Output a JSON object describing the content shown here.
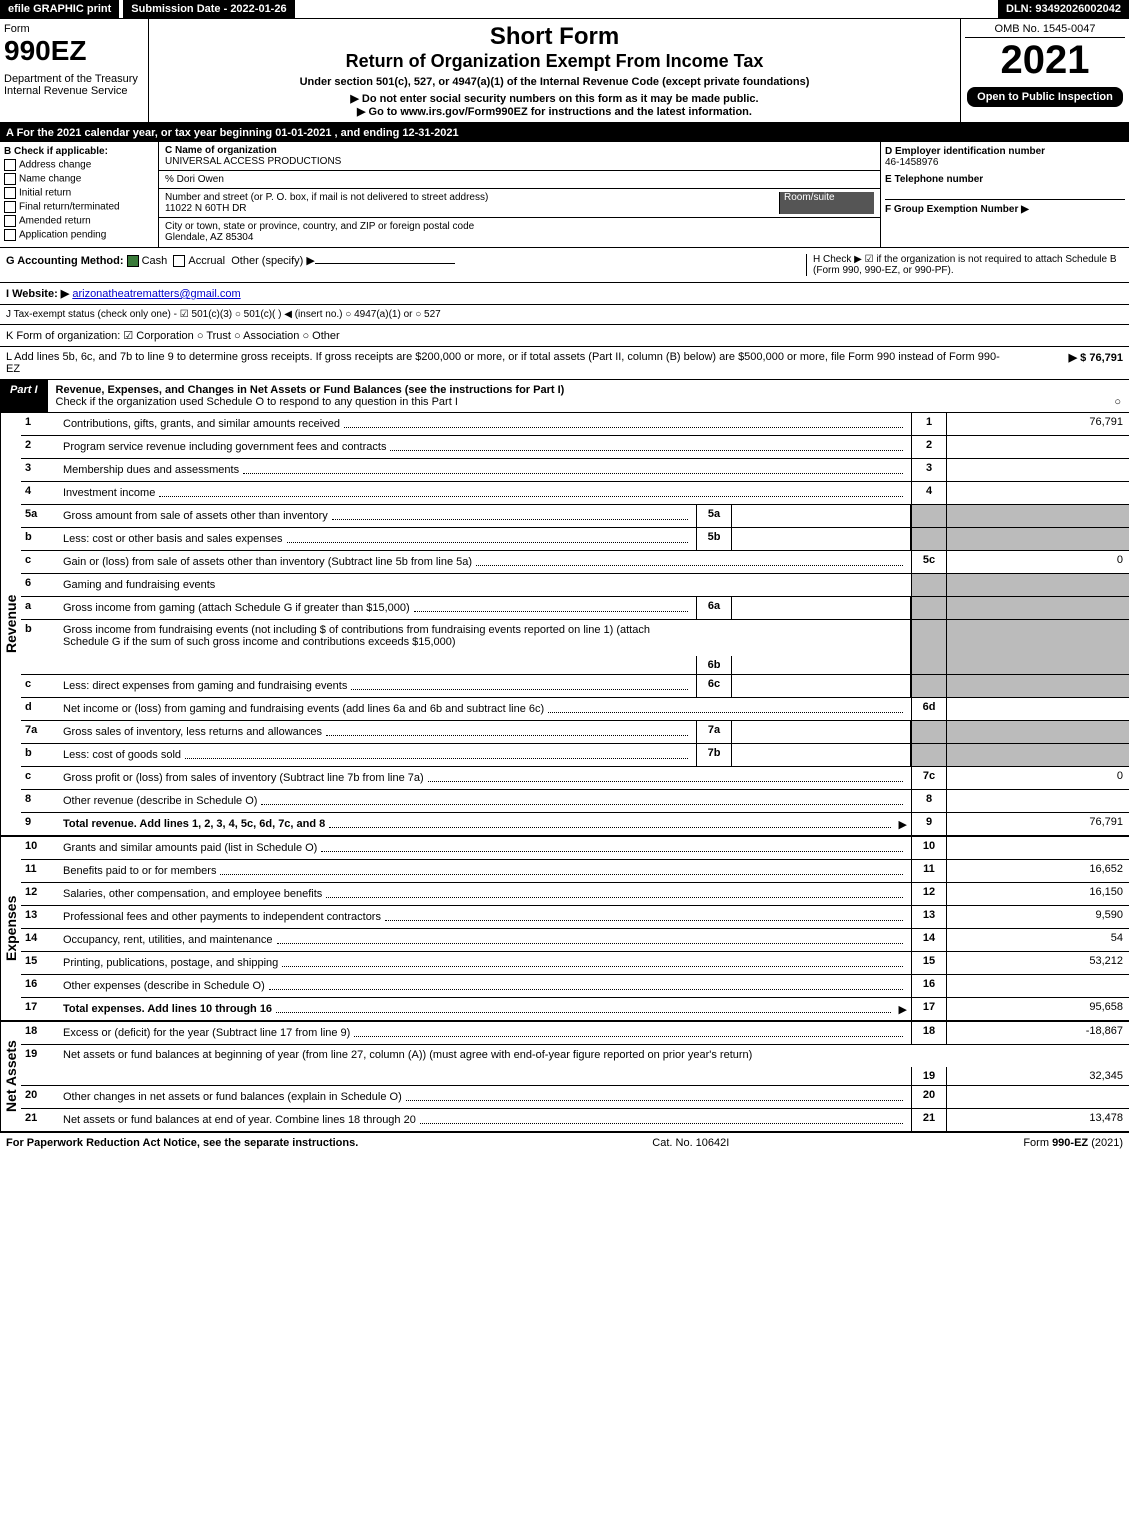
{
  "top": {
    "efile": "efile GRAPHIC print",
    "submission": "Submission Date - 2022-01-26",
    "dln": "DLN: 93492026002042"
  },
  "header": {
    "form": "Form",
    "form_num": "990EZ",
    "dept": "Department of the Treasury",
    "irs": "Internal Revenue Service",
    "title1": "Short Form",
    "title2": "Return of Organization Exempt From Income Tax",
    "subtitle": "Under section 501(c), 527, or 4947(a)(1) of the Internal Revenue Code (except private foundations)",
    "note1": "▶ Do not enter social security numbers on this form as it may be made public.",
    "note2": "▶ Go to www.irs.gov/Form990EZ for instructions and the latest information.",
    "omb": "OMB No. 1545-0047",
    "year": "2021",
    "open": "Open to Public Inspection"
  },
  "A": "A  For the 2021 calendar year, or tax year beginning 01-01-2021 , and ending 12-31-2021",
  "B": {
    "label": "B  Check if applicable:",
    "opts": [
      "Address change",
      "Name change",
      "Initial return",
      "Final return/terminated",
      "Amended return",
      "Application pending"
    ]
  },
  "C": {
    "label": "C Name of organization",
    "org": "UNIVERSAL ACCESS PRODUCTIONS",
    "care": "% Dori Owen",
    "street_label": "Number and street (or P. O. box, if mail is not delivered to street address)",
    "room_label": "Room/suite",
    "street": "11022 N 60TH DR",
    "city_label": "City or town, state or province, country, and ZIP or foreign postal code",
    "city": "Glendale, AZ  85304"
  },
  "DE": {
    "d_label": "D Employer identification number",
    "d_val": "46-1458976",
    "e_label": "E Telephone number",
    "f_label": "F Group Exemption Number  ▶"
  },
  "G": {
    "label": "G Accounting Method:",
    "cash": "Cash",
    "accrual": "Accrual",
    "other": "Other (specify) ▶"
  },
  "H": "H  Check ▶ ☑ if the organization is not required to attach Schedule B (Form 990, 990-EZ, or 990-PF).",
  "I": {
    "label": "I Website: ▶",
    "val": "arizonatheatrematters@gmail.com"
  },
  "J": "J Tax-exempt status (check only one) - ☑ 501(c)(3)  ○ 501(c)(  ) ◀ (insert no.)  ○ 4947(a)(1) or  ○ 527",
  "K": "K Form of organization:  ☑ Corporation  ○ Trust  ○ Association  ○ Other",
  "L": {
    "text": "L Add lines 5b, 6c, and 7b to line 9 to determine gross receipts. If gross receipts are $200,000 or more, or if total assets (Part II, column (B) below) are $500,000 or more, file Form 990 instead of Form 990-EZ",
    "amt": "▶ $ 76,791"
  },
  "part1": {
    "label": "Part I",
    "title": "Revenue, Expenses, and Changes in Net Assets or Fund Balances (see the instructions for Part I)",
    "check": "Check if the organization used Schedule O to respond to any question in this Part I",
    "check_end": "○"
  },
  "sections": {
    "revenue": "Revenue",
    "expenses": "Expenses",
    "net": "Net Assets"
  },
  "lines": {
    "1": {
      "n": "1",
      "d": "Contributions, gifts, grants, and similar amounts received",
      "ln": "1",
      "amt": "76,791"
    },
    "2": {
      "n": "2",
      "d": "Program service revenue including government fees and contracts",
      "ln": "2",
      "amt": ""
    },
    "3": {
      "n": "3",
      "d": "Membership dues and assessments",
      "ln": "3",
      "amt": ""
    },
    "4": {
      "n": "4",
      "d": "Investment income",
      "ln": "4",
      "amt": ""
    },
    "5a": {
      "n": "5a",
      "d": "Gross amount from sale of assets other than inventory",
      "sub": "5a"
    },
    "5b": {
      "n": "b",
      "d": "Less: cost or other basis and sales expenses",
      "sub": "5b"
    },
    "5c": {
      "n": "c",
      "d": "Gain or (loss) from sale of assets other than inventory (Subtract line 5b from line 5a)",
      "ln": "5c",
      "amt": "0"
    },
    "6": {
      "n": "6",
      "d": "Gaming and fundraising events"
    },
    "6a": {
      "n": "a",
      "d": "Gross income from gaming (attach Schedule G if greater than $15,000)",
      "sub": "6a"
    },
    "6b": {
      "n": "b",
      "d": "Gross income from fundraising events (not including $                    of contributions from fundraising events reported on line 1) (attach Schedule G if the sum of such gross income and contributions exceeds $15,000)",
      "sub": "6b"
    },
    "6c": {
      "n": "c",
      "d": "Less: direct expenses from gaming and fundraising events",
      "sub": "6c"
    },
    "6d": {
      "n": "d",
      "d": "Net income or (loss) from gaming and fundraising events (add lines 6a and 6b and subtract line 6c)",
      "ln": "6d",
      "amt": ""
    },
    "7a": {
      "n": "7a",
      "d": "Gross sales of inventory, less returns and allowances",
      "sub": "7a"
    },
    "7b": {
      "n": "b",
      "d": "Less: cost of goods sold",
      "sub": "7b"
    },
    "7c": {
      "n": "c",
      "d": "Gross profit or (loss) from sales of inventory (Subtract line 7b from line 7a)",
      "ln": "7c",
      "amt": "0"
    },
    "8": {
      "n": "8",
      "d": "Other revenue (describe in Schedule O)",
      "ln": "8",
      "amt": ""
    },
    "9": {
      "n": "9",
      "d": "Total revenue. Add lines 1, 2, 3, 4, 5c, 6d, 7c, and 8",
      "ln": "9",
      "amt": "76,791",
      "arrow": true,
      "bold": true
    },
    "10": {
      "n": "10",
      "d": "Grants and similar amounts paid (list in Schedule O)",
      "ln": "10",
      "amt": ""
    },
    "11": {
      "n": "11",
      "d": "Benefits paid to or for members",
      "ln": "11",
      "amt": "16,652"
    },
    "12": {
      "n": "12",
      "d": "Salaries, other compensation, and employee benefits",
      "ln": "12",
      "amt": "16,150"
    },
    "13": {
      "n": "13",
      "d": "Professional fees and other payments to independent contractors",
      "ln": "13",
      "amt": "9,590"
    },
    "14": {
      "n": "14",
      "d": "Occupancy, rent, utilities, and maintenance",
      "ln": "14",
      "amt": "54"
    },
    "15": {
      "n": "15",
      "d": "Printing, publications, postage, and shipping",
      "ln": "15",
      "amt": "53,212"
    },
    "16": {
      "n": "16",
      "d": "Other expenses (describe in Schedule O)",
      "ln": "16",
      "amt": ""
    },
    "17": {
      "n": "17",
      "d": "Total expenses. Add lines 10 through 16",
      "ln": "17",
      "amt": "95,658",
      "arrow": true,
      "bold": true
    },
    "18": {
      "n": "18",
      "d": "Excess or (deficit) for the year (Subtract line 17 from line 9)",
      "ln": "18",
      "amt": "-18,867"
    },
    "19": {
      "n": "19",
      "d": "Net assets or fund balances at beginning of year (from line 27, column (A)) (must agree with end-of-year figure reported on prior year's return)",
      "ln": "19",
      "amt": "32,345"
    },
    "20": {
      "n": "20",
      "d": "Other changes in net assets or fund balances (explain in Schedule O)",
      "ln": "20",
      "amt": ""
    },
    "21": {
      "n": "21",
      "d": "Net assets or fund balances at end of year. Combine lines 18 through 20",
      "ln": "21",
      "amt": "13,478"
    }
  },
  "footer": {
    "left": "For Paperwork Reduction Act Notice, see the separate instructions.",
    "mid": "Cat. No. 10642I",
    "right": "Form 990-EZ (2021)"
  }
}
